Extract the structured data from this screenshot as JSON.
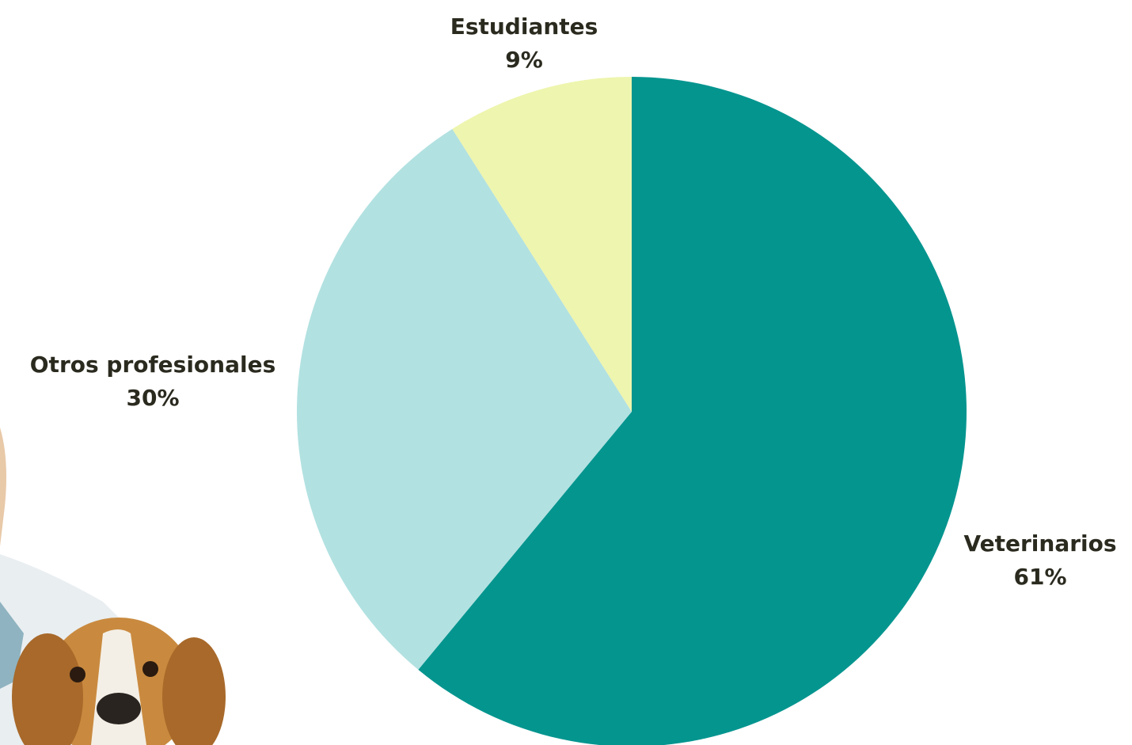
{
  "chart_data": {
    "type": "pie",
    "categories": [
      "Veterinarios",
      "Otros profesionales",
      "Estudiantes"
    ],
    "values": [
      61,
      30,
      9
    ],
    "value_labels": [
      "61%",
      "30%",
      "9%"
    ],
    "colors": [
      "#05958f",
      "#b2e1e1",
      "#eef5ae"
    ]
  }
}
